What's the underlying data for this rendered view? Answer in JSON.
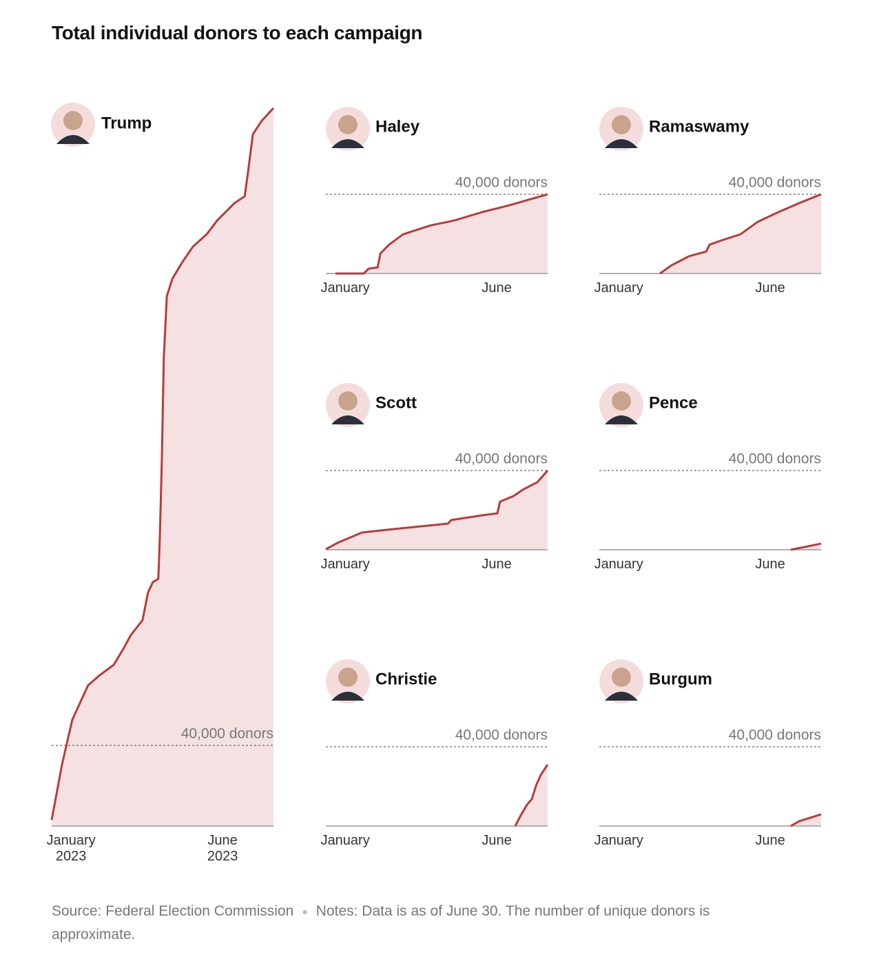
{
  "title": "Total individual donors to each campaign",
  "chart_data": [
    {
      "type": "area",
      "title": "Trump",
      "color": "#b83b3b",
      "x": [
        0.36,
        0.7,
        1.04,
        1.56,
        1.95,
        2.41,
        2.75,
        2.97,
        3.36,
        3.54,
        3.7,
        3.88,
        3.93,
        4.0,
        4.06,
        4.16,
        4.34,
        4.68,
        5.02,
        5.48,
        5.82,
        6.39,
        6.73,
        6.84,
        7.0,
        7.3,
        7.68
      ],
      "values": [
        3000,
        30400,
        52700,
        69800,
        74900,
        80000,
        88600,
        94700,
        102200,
        115900,
        121000,
        122700,
        143300,
        184300,
        232100,
        262900,
        271500,
        280000,
        287500,
        293700,
        300500,
        309100,
        312500,
        324500,
        343300,
        350100,
        356300
      ],
      "xlim": [
        0.36,
        7.68
      ],
      "xticks": [
        {
          "value": 1,
          "label": "January 2023"
        },
        {
          "value": 6,
          "label": "June 2023"
        }
      ],
      "ylim": [
        0,
        360000
      ],
      "yticks": [
        {
          "value": 40000,
          "label": "40,000 donors"
        }
      ]
    },
    {
      "type": "area",
      "title": "Haley",
      "color": "#b83b3b",
      "x": [
        0.68,
        1.61,
        1.77,
        2.07,
        2.16,
        2.45,
        2.91,
        3.82,
        4.61,
        5.52,
        6.43,
        7.68
      ],
      "values": [
        0,
        0,
        2400,
        3100,
        10100,
        14600,
        19800,
        24300,
        26800,
        31000,
        34500,
        40000
      ],
      "xlim": [
        0.36,
        7.68
      ],
      "xticks": [
        {
          "value": 1,
          "label": "January"
        },
        {
          "value": 6,
          "label": "June"
        }
      ],
      "ylim": [
        0,
        40000
      ],
      "yticks": [
        {
          "value": 40000,
          "label": "40,000 donors"
        }
      ]
    },
    {
      "type": "area",
      "title": "Ramaswamy",
      "color": "#b83b3b",
      "x": [
        2.36,
        2.75,
        3.32,
        3.89,
        4.0,
        4.45,
        5.02,
        5.59,
        6.27,
        6.95,
        7.68
      ],
      "values": [
        0,
        4200,
        8700,
        11100,
        14600,
        17000,
        19800,
        26100,
        31000,
        35500,
        40000
      ],
      "xlim": [
        0.36,
        7.68
      ],
      "xticks": [
        {
          "value": 1,
          "label": "January"
        },
        {
          "value": 6,
          "label": "June"
        }
      ],
      "ylim": [
        0,
        40000
      ],
      "yticks": [
        {
          "value": 40000,
          "label": "40,000 donors"
        }
      ]
    },
    {
      "type": "area",
      "title": "Scott",
      "color": "#b83b3b",
      "x": [
        0.36,
        0.75,
        1.55,
        2.57,
        4.39,
        4.5,
        5.52,
        6.02,
        6.11,
        6.55,
        6.89,
        7.34,
        7.68
      ],
      "values": [
        300,
        3500,
        8700,
        10400,
        13200,
        15000,
        17400,
        18400,
        24300,
        27100,
        30600,
        34100,
        40000
      ],
      "xlim": [
        0.36,
        7.68
      ],
      "xticks": [
        {
          "value": 1,
          "label": "January"
        },
        {
          "value": 6,
          "label": "June"
        }
      ],
      "ylim": [
        0,
        40000
      ],
      "yticks": [
        {
          "value": 40000,
          "label": "40,000 donors"
        }
      ]
    },
    {
      "type": "area",
      "title": "Pence",
      "color": "#b83b3b",
      "x": [
        6.68,
        7.68
      ],
      "values": [
        0,
        3100
      ],
      "xlim": [
        0.36,
        7.68
      ],
      "xticks": [
        {
          "value": 1,
          "label": "January"
        },
        {
          "value": 6,
          "label": "June"
        }
      ],
      "ylim": [
        0,
        40000
      ],
      "yticks": [
        {
          "value": 40000,
          "label": "40,000 donors"
        }
      ]
    },
    {
      "type": "area",
      "title": "Christie",
      "color": "#b83b3b",
      "x": [
        6.61,
        6.8,
        7.0,
        7.16,
        7.3,
        7.45,
        7.68
      ],
      "values": [
        0,
        5600,
        10800,
        13600,
        20500,
        25700,
        31000
      ],
      "xlim": [
        0.36,
        7.68
      ],
      "xticks": [
        {
          "value": 1,
          "label": "January"
        },
        {
          "value": 6,
          "label": "June"
        }
      ],
      "ylim": [
        0,
        40000
      ],
      "yticks": [
        {
          "value": 40000,
          "label": "40,000 donors"
        }
      ]
    },
    {
      "type": "area",
      "title": "Burgum",
      "color": "#b83b3b",
      "x": [
        6.68,
        6.95,
        7.68
      ],
      "values": [
        0,
        2400,
        5900
      ],
      "xlim": [
        0.36,
        7.68
      ],
      "xticks": [
        {
          "value": 1,
          "label": "January"
        },
        {
          "value": 6,
          "label": "June"
        }
      ],
      "ylim": [
        0,
        40000
      ],
      "yticks": [
        {
          "value": 40000,
          "label": "40,000 donors"
        }
      ]
    }
  ],
  "source": "Source: Federal Election Commission",
  "notes": "Notes: Data is as of June 30. The number of unique donors is approximate."
}
